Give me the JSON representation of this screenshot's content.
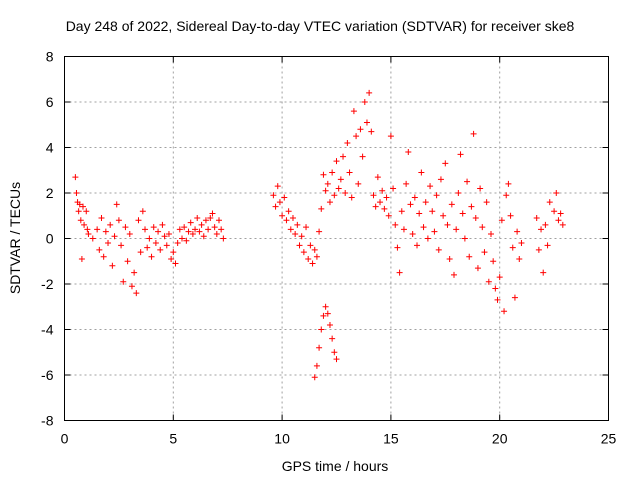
{
  "chart_data": {
    "type": "scatter",
    "title": "Day 248 of 2022, Sidereal Day-to-day VTEC variation (SDTVAR) for receiver ske8",
    "xlabel": "GPS time / hours",
    "ylabel": "SDTVAR / TECUs",
    "xlim": [
      0,
      25
    ],
    "ylim": [
      -8,
      8
    ],
    "x_ticks": [
      0,
      5,
      10,
      15,
      20,
      25
    ],
    "x_tick_labels": [
      "0",
      "5",
      "10",
      "15",
      "20",
      "25"
    ],
    "y_ticks": [
      -8,
      -6,
      -4,
      -2,
      0,
      2,
      4,
      6,
      8
    ],
    "y_tick_labels": [
      "-8",
      "-6",
      "-4",
      "-2",
      "0",
      "2",
      "4",
      "6",
      "8"
    ],
    "grid": true,
    "marker": "+",
    "color": "#ff0000",
    "series": [
      {
        "name": "SDTVAR",
        "points": [
          [
            0.5,
            2.7
          ],
          [
            0.55,
            2.0
          ],
          [
            0.6,
            1.6
          ],
          [
            0.65,
            1.2
          ],
          [
            0.7,
            1.5
          ],
          [
            0.75,
            0.8
          ],
          [
            0.8,
            -0.9
          ],
          [
            0.85,
            1.4
          ],
          [
            0.9,
            0.6
          ],
          [
            1.0,
            1.2
          ],
          [
            1.05,
            0.4
          ],
          [
            1.1,
            0.2
          ],
          [
            1.3,
            0.0
          ],
          [
            1.5,
            0.4
          ],
          [
            1.6,
            -0.5
          ],
          [
            1.7,
            0.9
          ],
          [
            1.8,
            -0.8
          ],
          [
            1.9,
            0.3
          ],
          [
            2.0,
            -0.2
          ],
          [
            2.1,
            0.6
          ],
          [
            2.2,
            -1.2
          ],
          [
            2.3,
            0.1
          ],
          [
            2.4,
            1.5
          ],
          [
            2.5,
            0.8
          ],
          [
            2.6,
            -0.3
          ],
          [
            2.7,
            -1.9
          ],
          [
            2.8,
            0.5
          ],
          [
            2.9,
            -1.0
          ],
          [
            3.0,
            0.2
          ],
          [
            3.1,
            -2.1
          ],
          [
            3.2,
            -1.5
          ],
          [
            3.3,
            -2.4
          ],
          [
            3.4,
            0.8
          ],
          [
            3.5,
            -0.6
          ],
          [
            3.6,
            1.2
          ],
          [
            3.7,
            0.4
          ],
          [
            3.8,
            -0.4
          ],
          [
            3.9,
            0.0
          ],
          [
            4.0,
            -0.8
          ],
          [
            4.1,
            0.5
          ],
          [
            4.2,
            -0.2
          ],
          [
            4.3,
            0.3
          ],
          [
            4.4,
            -0.5
          ],
          [
            4.5,
            0.6
          ],
          [
            4.6,
            0.1
          ],
          [
            4.7,
            -0.3
          ],
          [
            4.8,
            0.2
          ],
          [
            4.9,
            -0.9
          ],
          [
            5.0,
            -0.6
          ],
          [
            5.1,
            -1.1
          ],
          [
            5.2,
            -0.2
          ],
          [
            5.3,
            0.4
          ],
          [
            5.4,
            0.0
          ],
          [
            5.5,
            0.5
          ],
          [
            5.6,
            -0.1
          ],
          [
            5.7,
            0.3
          ],
          [
            5.8,
            0.7
          ],
          [
            5.9,
            0.2
          ],
          [
            6.0,
            0.4
          ],
          [
            6.1,
            0.9
          ],
          [
            6.2,
            0.3
          ],
          [
            6.3,
            0.6
          ],
          [
            6.4,
            0.1
          ],
          [
            6.5,
            0.8
          ],
          [
            6.6,
            0.4
          ],
          [
            6.7,
            0.9
          ],
          [
            6.8,
            1.1
          ],
          [
            6.9,
            0.5
          ],
          [
            7.0,
            0.2
          ],
          [
            7.1,
            0.8
          ],
          [
            7.2,
            0.4
          ],
          [
            7.3,
            0.0
          ],
          [
            9.6,
            1.9
          ],
          [
            9.7,
            1.4
          ],
          [
            9.8,
            2.3
          ],
          [
            9.9,
            1.6
          ],
          [
            10.0,
            1.0
          ],
          [
            10.1,
            1.8
          ],
          [
            10.2,
            0.8
          ],
          [
            10.3,
            1.2
          ],
          [
            10.4,
            0.4
          ],
          [
            10.5,
            0.9
          ],
          [
            10.6,
            0.2
          ],
          [
            10.7,
            0.6
          ],
          [
            10.8,
            -0.3
          ],
          [
            10.9,
            0.1
          ],
          [
            11.0,
            -0.6
          ],
          [
            11.1,
            0.5
          ],
          [
            11.2,
            -0.9
          ],
          [
            11.3,
            -0.3
          ],
          [
            11.4,
            -1.1
          ],
          [
            11.5,
            -0.5
          ],
          [
            11.6,
            -0.8
          ],
          [
            11.7,
            0.3
          ],
          [
            11.8,
            1.3
          ],
          [
            11.9,
            2.8
          ],
          [
            11.5,
            -6.1
          ],
          [
            11.6,
            -5.6
          ],
          [
            11.7,
            -4.8
          ],
          [
            11.8,
            -4.0
          ],
          [
            11.9,
            -3.4
          ],
          [
            12.0,
            -3.0
          ],
          [
            12.1,
            -3.3
          ],
          [
            12.2,
            -3.8
          ],
          [
            12.3,
            -4.4
          ],
          [
            12.4,
            -5.0
          ],
          [
            12.5,
            -5.3
          ],
          [
            12.0,
            2.1
          ],
          [
            12.1,
            2.4
          ],
          [
            12.2,
            1.6
          ],
          [
            12.3,
            2.9
          ],
          [
            12.4,
            1.9
          ],
          [
            12.5,
            3.4
          ],
          [
            12.6,
            2.2
          ],
          [
            12.7,
            2.6
          ],
          [
            12.8,
            3.6
          ],
          [
            12.9,
            2.0
          ],
          [
            13.0,
            4.2
          ],
          [
            13.1,
            2.9
          ],
          [
            13.2,
            1.8
          ],
          [
            13.3,
            5.6
          ],
          [
            13.4,
            4.5
          ],
          [
            13.5,
            2.4
          ],
          [
            13.6,
            4.8
          ],
          [
            13.7,
            3.6
          ],
          [
            13.8,
            6.0
          ],
          [
            13.9,
            5.1
          ],
          [
            14.0,
            6.4
          ],
          [
            14.1,
            4.7
          ],
          [
            14.2,
            1.9
          ],
          [
            14.3,
            1.4
          ],
          [
            14.4,
            2.7
          ],
          [
            14.5,
            1.6
          ],
          [
            14.6,
            2.1
          ],
          [
            14.7,
            1.3
          ],
          [
            14.8,
            1.8
          ],
          [
            14.9,
            1.0
          ],
          [
            15.0,
            4.5
          ],
          [
            15.1,
            2.2
          ],
          [
            15.2,
            0.6
          ],
          [
            15.3,
            -0.4
          ],
          [
            15.4,
            -1.5
          ],
          [
            15.5,
            1.2
          ],
          [
            15.6,
            0.4
          ],
          [
            15.7,
            2.4
          ],
          [
            15.8,
            3.8
          ],
          [
            15.9,
            1.5
          ],
          [
            16.0,
            0.2
          ],
          [
            16.1,
            1.8
          ],
          [
            16.2,
            -0.3
          ],
          [
            16.3,
            1.1
          ],
          [
            16.4,
            2.9
          ],
          [
            16.5,
            0.5
          ],
          [
            16.6,
            1.6
          ],
          [
            16.7,
            0.0
          ],
          [
            16.8,
            2.3
          ],
          [
            16.9,
            1.2
          ],
          [
            17.0,
            0.3
          ],
          [
            17.1,
            1.9
          ],
          [
            17.2,
            -0.5
          ],
          [
            17.3,
            2.6
          ],
          [
            17.4,
            1.0
          ],
          [
            17.5,
            3.3
          ],
          [
            17.6,
            0.6
          ],
          [
            17.7,
            -0.9
          ],
          [
            17.8,
            1.5
          ],
          [
            17.9,
            -1.6
          ],
          [
            18.0,
            0.4
          ],
          [
            18.1,
            2.0
          ],
          [
            18.2,
            3.7
          ],
          [
            18.3,
            1.1
          ],
          [
            18.4,
            0.0
          ],
          [
            18.5,
            2.5
          ],
          [
            18.6,
            -0.8
          ],
          [
            18.7,
            1.4
          ],
          [
            18.8,
            4.6
          ],
          [
            18.9,
            0.9
          ],
          [
            19.0,
            -1.3
          ],
          [
            19.1,
            2.2
          ],
          [
            19.2,
            0.5
          ],
          [
            19.3,
            -0.6
          ],
          [
            19.4,
            1.6
          ],
          [
            19.5,
            -1.9
          ],
          [
            19.6,
            0.2
          ],
          [
            19.7,
            -1.0
          ],
          [
            19.8,
            -2.2
          ],
          [
            19.9,
            -2.7
          ],
          [
            20.0,
            -1.7
          ],
          [
            20.1,
            0.8
          ],
          [
            20.2,
            -3.2
          ],
          [
            20.3,
            1.9
          ],
          [
            20.4,
            2.4
          ],
          [
            20.5,
            1.0
          ],
          [
            20.6,
            -0.4
          ],
          [
            20.7,
            -2.6
          ],
          [
            20.8,
            0.3
          ],
          [
            20.9,
            -0.9
          ],
          [
            21.0,
            -0.2
          ],
          [
            21.7,
            0.9
          ],
          [
            21.8,
            -0.5
          ],
          [
            21.9,
            0.4
          ],
          [
            22.0,
            -1.5
          ],
          [
            22.1,
            0.6
          ],
          [
            22.2,
            -0.3
          ],
          [
            22.3,
            1.6
          ],
          [
            22.5,
            1.2
          ],
          [
            22.6,
            2.0
          ],
          [
            22.7,
            0.8
          ],
          [
            22.8,
            1.1
          ],
          [
            22.9,
            0.6
          ]
        ]
      }
    ]
  }
}
